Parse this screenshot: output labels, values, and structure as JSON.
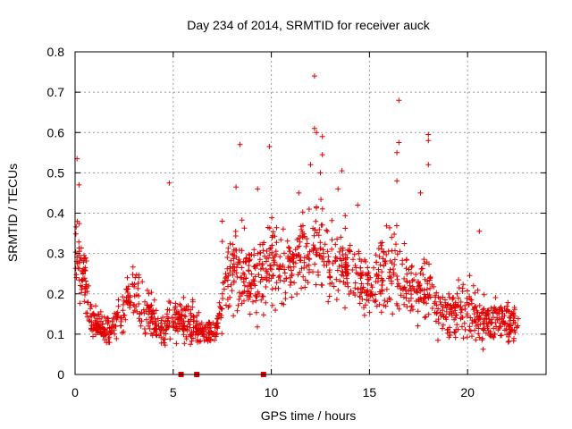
{
  "chart_data": {
    "type": "scatter",
    "title": "Day 234 of 2014, SRMTID for receiver auck",
    "xlabel": "GPS time / hours",
    "ylabel": "SRMTID / TECUs",
    "xlim": [
      0,
      24
    ],
    "ylim": [
      0,
      0.8
    ],
    "xticks": [
      0,
      5,
      10,
      15,
      20
    ],
    "yticks": [
      0,
      0.1,
      0.2,
      0.3,
      0.4,
      0.5,
      0.6,
      0.7,
      0.8
    ],
    "xtick_labels": [
      "0",
      "5",
      "10",
      "15",
      "20"
    ],
    "ytick_labels": [
      "0",
      "0.1",
      "0.2",
      "0.3",
      "0.4",
      "0.5",
      "0.6",
      "0.7",
      "0.8"
    ],
    "grid": true,
    "marker": "plus",
    "color": "#e00000",
    "zero_markers_x": [
      5.4,
      6.2,
      9.6
    ],
    "envelope": [
      [
        0.0,
        0.08,
        0.5
      ],
      [
        0.3,
        0.15,
        0.42
      ],
      [
        0.6,
        0.1,
        0.3
      ],
      [
        0.8,
        0.08,
        0.2
      ],
      [
        1.2,
        0.07,
        0.16
      ],
      [
        1.8,
        0.06,
        0.16
      ],
      [
        2.3,
        0.08,
        0.22
      ],
      [
        3.0,
        0.1,
        0.32
      ],
      [
        3.5,
        0.08,
        0.26
      ],
      [
        4.0,
        0.07,
        0.2
      ],
      [
        4.5,
        0.05,
        0.16
      ],
      [
        4.8,
        0.06,
        0.2
      ],
      [
        5.3,
        0.06,
        0.22
      ],
      [
        6.0,
        0.05,
        0.2
      ],
      [
        6.5,
        0.06,
        0.14
      ],
      [
        7.2,
        0.07,
        0.16
      ],
      [
        7.6,
        0.09,
        0.3
      ],
      [
        8.0,
        0.12,
        0.4
      ],
      [
        8.6,
        0.12,
        0.42
      ],
      [
        9.2,
        0.1,
        0.35
      ],
      [
        9.6,
        0.12,
        0.4
      ],
      [
        10.2,
        0.12,
        0.44
      ],
      [
        11.0,
        0.14,
        0.38
      ],
      [
        11.8,
        0.15,
        0.46
      ],
      [
        12.3,
        0.16,
        0.52
      ],
      [
        13.0,
        0.14,
        0.4
      ],
      [
        13.6,
        0.15,
        0.44
      ],
      [
        14.3,
        0.12,
        0.36
      ],
      [
        15.0,
        0.1,
        0.33
      ],
      [
        15.8,
        0.11,
        0.38
      ],
      [
        16.3,
        0.1,
        0.42
      ],
      [
        17.0,
        0.09,
        0.3
      ],
      [
        17.8,
        0.1,
        0.35
      ],
      [
        18.5,
        0.07,
        0.24
      ],
      [
        19.3,
        0.06,
        0.24
      ],
      [
        20.0,
        0.05,
        0.28
      ],
      [
        20.8,
        0.05,
        0.22
      ],
      [
        21.5,
        0.06,
        0.22
      ],
      [
        22.2,
        0.05,
        0.2
      ],
      [
        22.6,
        0.06,
        0.18
      ]
    ],
    "outliers": [
      [
        12.2,
        0.74
      ],
      [
        16.5,
        0.68
      ],
      [
        12.2,
        0.61
      ],
      [
        12.3,
        0.6
      ],
      [
        12.6,
        0.59
      ],
      [
        8.4,
        0.57
      ],
      [
        9.9,
        0.565
      ],
      [
        16.5,
        0.575
      ],
      [
        18.0,
        0.595
      ],
      [
        18.0,
        0.58
      ],
      [
        16.4,
        0.55
      ],
      [
        12.6,
        0.545
      ],
      [
        0.1,
        0.535
      ],
      [
        13.6,
        0.505
      ],
      [
        4.8,
        0.475
      ],
      [
        8.2,
        0.465
      ],
      [
        12.0,
        0.52
      ],
      [
        20.6,
        0.355
      ],
      [
        7.5,
        0.38
      ],
      [
        7.5,
        0.33
      ],
      [
        0.2,
        0.47
      ],
      [
        12.5,
        0.5
      ],
      [
        16.4,
        0.48
      ],
      [
        18.0,
        0.52
      ],
      [
        17.6,
        0.45
      ],
      [
        9.3,
        0.46
      ],
      [
        11.4,
        0.45
      ],
      [
        14.4,
        0.42
      ],
      [
        13.4,
        0.46
      ]
    ],
    "n_points": 1500
  }
}
